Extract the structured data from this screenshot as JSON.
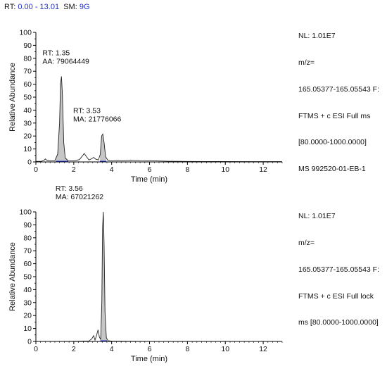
{
  "header": {
    "rt_label": "RT:",
    "rt_range": "0.00 - 13.01",
    "sm_label": "SM:",
    "sm_value": "9G"
  },
  "colors": {
    "header_values": "#1f2fd0",
    "peak_fill": "#c6c6c6",
    "baseline": "#2433d8"
  },
  "chart_data": [
    {
      "type": "line",
      "xlabel": "Time (min)",
      "ylabel": "Relative Abundance",
      "xlim": [
        0,
        13
      ],
      "ylim": [
        0,
        100
      ],
      "xticks": [
        0,
        2,
        4,
        6,
        8,
        10,
        12
      ],
      "yticks": [
        0,
        10,
        20,
        30,
        40,
        50,
        60,
        70,
        80,
        90,
        100
      ],
      "grid": false,
      "info": [
        "NL: 1.01E7",
        "m/z=",
        "165.05377-165.05543 F:",
        "FTMS + c ESI Full ms",
        "[80.0000-1000.0000]",
        "MS 992520-01-EB-1"
      ],
      "trace": {
        "x": [
          0,
          0.3,
          0.45,
          0.5,
          0.55,
          0.7,
          1.0,
          1.15,
          1.25,
          1.3,
          1.35,
          1.4,
          1.47,
          1.55,
          1.7,
          2.0,
          2.3,
          2.45,
          2.55,
          2.65,
          2.8,
          2.95,
          3.05,
          3.15,
          3.3,
          3.4,
          3.47,
          3.53,
          3.6,
          3.68,
          3.8,
          4.0,
          4.3,
          4.6,
          5.0,
          5.5,
          6.0,
          7.0,
          8.0,
          9.0,
          10.0,
          11.0,
          12.0,
          13.0
        ],
        "y": [
          0.4,
          0.5,
          1.5,
          2.3,
          1.5,
          0.8,
          1.0,
          6,
          30,
          60,
          66,
          52,
          15,
          3,
          1.0,
          0.8,
          1.8,
          4.5,
          6.5,
          4.5,
          1.5,
          2.5,
          3.5,
          2.2,
          1.5,
          6,
          20,
          21.5,
          15,
          4,
          1.2,
          0.8,
          1.2,
          1.0,
          1.3,
          1.0,
          0.9,
          0.5,
          0.4,
          0.3,
          0.3,
          0.2,
          0.2,
          0.2
        ]
      },
      "peaks": [
        {
          "rt": 1.35,
          "apex": 66,
          "start": 1.05,
          "end": 1.7,
          "label_rt": "RT: 1.35",
          "label_area": "AA: 79064449"
        },
        {
          "rt": 3.53,
          "apex": 21.5,
          "start": 3.38,
          "end": 3.72,
          "label_rt": "RT: 3.53",
          "label_area": "MA: 21776066"
        }
      ]
    },
    {
      "type": "line",
      "xlabel": "Time (min)",
      "ylabel": "Relative Abundance",
      "xlim": [
        0,
        13
      ],
      "ylim": [
        0,
        100
      ],
      "xticks": [
        0,
        2,
        4,
        6,
        8,
        10,
        12
      ],
      "yticks": [
        0,
        10,
        20,
        30,
        40,
        50,
        60,
        70,
        80,
        90,
        100
      ],
      "grid": false,
      "info": [
        "NL: 1.01E7",
        "m/z=",
        "165.05377-165.05543 F:",
        "FTMS + c ESI Full lock",
        "ms [80.0000-1000.0000]"
      ],
      "trace": {
        "x": [
          0,
          1.0,
          2.0,
          2.8,
          2.95,
          3.05,
          3.12,
          3.2,
          3.28,
          3.35,
          3.42,
          3.48,
          3.52,
          3.56,
          3.6,
          3.65,
          3.72,
          3.8,
          4.0,
          5.0,
          6.0,
          8.0,
          10.0,
          12.0,
          13.0
        ],
        "y": [
          0,
          0,
          0.1,
          0.3,
          2,
          4.5,
          1.0,
          4.5,
          9,
          3.5,
          1.5,
          30,
          88,
          100,
          75,
          22,
          3,
          0.6,
          0.2,
          0.1,
          0,
          0,
          0,
          0,
          0
        ]
      },
      "peaks": [
        {
          "rt": 3.56,
          "apex": 100,
          "start": 3.4,
          "end": 3.75,
          "label_rt": "RT: 3.56",
          "label_area": "MA: 67021262"
        }
      ]
    }
  ]
}
